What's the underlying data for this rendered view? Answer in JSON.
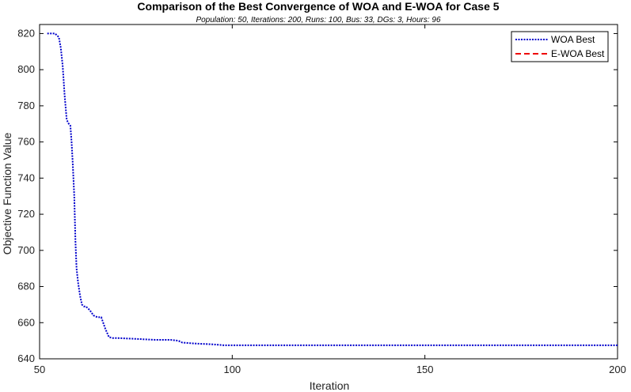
{
  "chart_data": {
    "type": "line",
    "title": "Comparison of the Best Convergence of WOA and E-WOA for Case 5",
    "subtitle": "Population: 50, Iterations: 200, Runs: 100, Bus: 33, DGs: 3, Hours: 96",
    "xlabel": "Iteration",
    "ylabel": "Objective Function Value",
    "xlim": [
      50,
      200
    ],
    "ylim": [
      640,
      825
    ],
    "xticks": [
      50,
      100,
      150,
      200
    ],
    "yticks": [
      640,
      660,
      680,
      700,
      720,
      740,
      760,
      780,
      800,
      820
    ],
    "grid": false,
    "legend_position": "top-right",
    "series": [
      {
        "name": "WOA Best",
        "color": "#0000cc",
        "style": "dotted",
        "x": [
          52,
          54,
          55,
          55.5,
          56,
          56.5,
          57,
          57.3,
          57.6,
          58,
          58.3,
          58.6,
          59,
          59.3,
          59.6,
          60,
          60.5,
          61,
          61.5,
          62,
          63,
          64,
          65,
          66,
          67,
          68,
          69,
          70,
          75,
          80,
          84,
          86,
          87,
          90,
          95,
          98,
          100,
          120,
          150,
          175,
          200
        ],
        "values": [
          820,
          820,
          818,
          812,
          802,
          786,
          773,
          771,
          770,
          769,
          760,
          748,
          730,
          705,
          690,
          682,
          675,
          670,
          669,
          669,
          667,
          664,
          663,
          663,
          657,
          652,
          651.5,
          651.5,
          651,
          650.5,
          650.5,
          650,
          649,
          648.5,
          648,
          647.5,
          647.5,
          647.5,
          647.5,
          647.5,
          647.5
        ]
      },
      {
        "name": "E-WOA Best",
        "color": "#ee0000",
        "style": "dashed",
        "x": [],
        "values": []
      }
    ]
  }
}
